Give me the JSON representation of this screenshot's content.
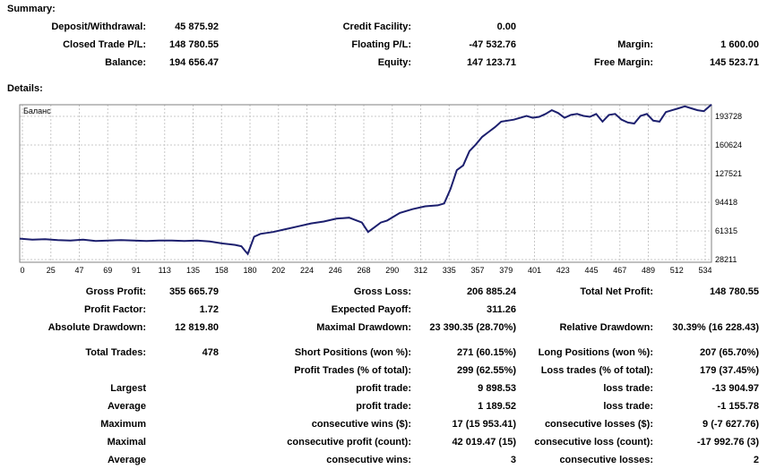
{
  "summary": {
    "title": "Summary:",
    "deposit_withdrawal": {
      "label": "Deposit/Withdrawal:",
      "value": "45 875.92"
    },
    "credit_facility": {
      "label": "Credit Facility:",
      "value": "0.00"
    },
    "closed_trade_pl": {
      "label": "Closed Trade P/L:",
      "value": "148 780.55"
    },
    "floating_pl": {
      "label": "Floating P/L:",
      "value": "-47 532.76"
    },
    "margin": {
      "label": "Margin:",
      "value": "1 600.00"
    },
    "balance": {
      "label": "Balance:",
      "value": "194 656.47"
    },
    "equity": {
      "label": "Equity:",
      "value": "147 123.71"
    },
    "free_margin": {
      "label": "Free Margin:",
      "value": "145 523.71"
    }
  },
  "details": {
    "title": "Details:",
    "gross_profit": {
      "label": "Gross Profit:",
      "value": "355 665.79"
    },
    "gross_loss": {
      "label": "Gross Loss:",
      "value": "206 885.24"
    },
    "total_net_profit": {
      "label": "Total Net Profit:",
      "value": "148 780.55"
    },
    "profit_factor": {
      "label": "Profit Factor:",
      "value": "1.72"
    },
    "expected_payoff": {
      "label": "Expected Payoff:",
      "value": "311.26"
    },
    "absolute_drawdown": {
      "label": "Absolute Drawdown:",
      "value": "12 819.80"
    },
    "maximal_drawdown": {
      "label": "Maximal Drawdown:",
      "value": "23 390.35 (28.70%)"
    },
    "relative_drawdown": {
      "label": "Relative Drawdown:",
      "value": "30.39% (16 228.43)"
    },
    "total_trades": {
      "label": "Total Trades:",
      "value": "478"
    },
    "short_positions": {
      "label": "Short Positions (won %):",
      "value": "271 (60.15%)"
    },
    "long_positions": {
      "label": "Long Positions (won %):",
      "value": "207 (65.70%)"
    },
    "profit_trades": {
      "label": "Profit Trades (% of total):",
      "value": "299 (62.55%)"
    },
    "loss_trades": {
      "label": "Loss trades (% of total):",
      "value": "179 (37.45%)"
    },
    "largest": {
      "label": "Largest",
      "profit_label": "profit trade:",
      "profit_value": "9 898.53",
      "loss_label": "loss trade:",
      "loss_value": "-13 904.97"
    },
    "average": {
      "label": "Average",
      "profit_label": "profit trade:",
      "profit_value": "1 189.52",
      "loss_label": "loss trade:",
      "loss_value": "-1 155.78"
    },
    "maximum": {
      "label": "Maximum",
      "profit_label": "consecutive wins ($):",
      "profit_value": "17 (15 953.41)",
      "loss_label": "consecutive losses ($):",
      "loss_value": "9 (-7 627.76)"
    },
    "maximal": {
      "label": "Maximal",
      "profit_label": "consecutive profit (count):",
      "profit_value": "42 019.47 (15)",
      "loss_label": "consecutive loss (count):",
      "loss_value": "-17 992.76 (3)"
    },
    "average_consec": {
      "label": "Average",
      "profit_label": "consecutive wins:",
      "profit_value": "3",
      "loss_label": "consecutive losses:",
      "loss_value": "2"
    }
  },
  "chart_data": {
    "type": "line",
    "title": "Баланс",
    "x_ticks": [
      "0",
      "25",
      "47",
      "69",
      "91",
      "113",
      "135",
      "158",
      "180",
      "202",
      "224",
      "246",
      "268",
      "290",
      "312",
      "335",
      "357",
      "379",
      "401",
      "423",
      "445",
      "467",
      "489",
      "512",
      "534"
    ],
    "y_ticks": [
      "193728",
      "160624",
      "127521",
      "94418",
      "61315",
      "28211"
    ],
    "xlim": [
      0,
      546
    ],
    "ylim": [
      28211,
      193728
    ],
    "grid": true,
    "colors": {
      "line": "#1c1f6e",
      "grid": "#c8c8c8",
      "border": "#808080"
    },
    "series": [
      {
        "x": [
          0,
          10,
          20,
          30,
          40,
          50,
          60,
          70,
          80,
          90,
          100,
          110,
          120,
          130,
          140,
          150,
          160,
          170,
          175,
          178,
          180,
          185,
          190,
          200,
          210,
          220,
          230,
          240,
          250,
          260,
          270,
          275,
          280,
          285,
          290,
          300,
          310,
          320,
          330,
          335,
          340,
          345,
          350,
          355,
          360,
          365,
          370,
          375,
          380,
          390,
          400,
          405,
          410,
          415,
          420,
          425,
          430,
          435,
          440,
          445,
          450,
          455,
          460,
          465,
          470,
          475,
          480,
          485,
          490,
          495,
          500,
          505,
          510,
          515,
          520,
          525,
          530,
          535,
          540,
          546
        ],
        "y": [
          53000,
          52000,
          52500,
          51500,
          51000,
          52000,
          50500,
          51000,
          51500,
          51000,
          50500,
          51000,
          51000,
          50500,
          51000,
          50000,
          48000,
          46500,
          45000,
          40000,
          37000,
          55000,
          58000,
          60000,
          63000,
          66000,
          69000,
          71000,
          74000,
          75000,
          70000,
          60000,
          65000,
          70000,
          72000,
          80000,
          84000,
          87000,
          88000,
          90000,
          105000,
          125000,
          130000,
          145000,
          152000,
          160000,
          165000,
          170000,
          176000,
          178000,
          182000,
          180000,
          181000,
          184000,
          188000,
          185000,
          180000,
          183000,
          184000,
          182000,
          181000,
          184000,
          176000,
          183000,
          184000,
          178000,
          175000,
          174000,
          182000,
          184000,
          177000,
          176000,
          186000,
          188000,
          190000,
          192000,
          190000,
          188000,
          187000,
          194000
        ]
      }
    ]
  }
}
